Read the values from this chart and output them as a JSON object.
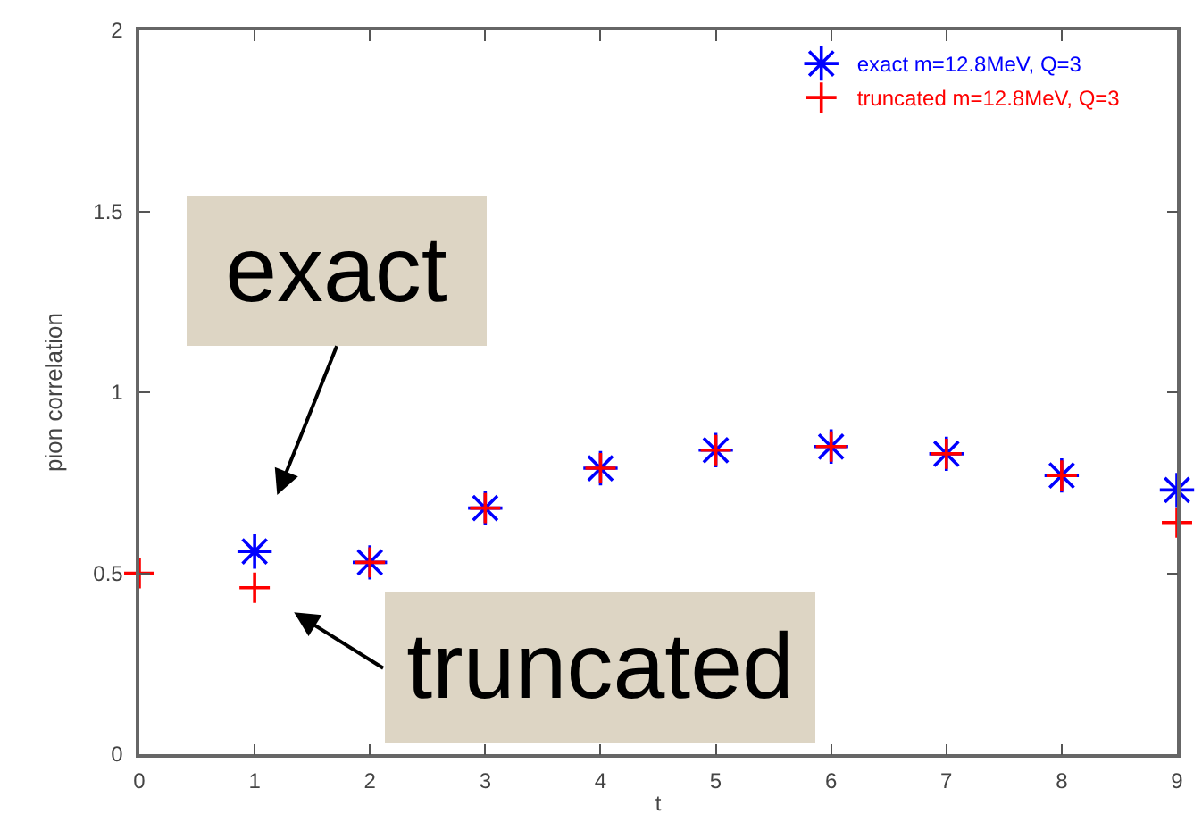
{
  "chart_data": {
    "type": "scatter",
    "xlabel": "t",
    "ylabel": "pion correlation",
    "x": [
      0,
      1,
      2,
      3,
      4,
      5,
      6,
      7,
      8,
      9
    ],
    "series": [
      {
        "name": "exact m=12.8MeV, Q=3",
        "color": "#0000ff",
        "values": [
          null,
          0.56,
          0.53,
          0.68,
          0.79,
          0.84,
          0.85,
          0.83,
          0.77,
          0.73
        ]
      },
      {
        "name": "truncated m=12.8MeV, Q=3",
        "color": "#ff0000",
        "marker": "cross",
        "values": [
          0.5,
          0.46,
          0.53,
          0.68,
          0.79,
          0.84,
          0.85,
          0.83,
          0.77,
          0.64
        ]
      }
    ],
    "xlim": [
      0,
      9
    ],
    "xticks": [
      0,
      1,
      2,
      3,
      4,
      5,
      6,
      7,
      8,
      9
    ],
    "ylim": [
      0,
      2
    ],
    "yticks": [
      0,
      0.5,
      1,
      1.5,
      2
    ],
    "grid": false,
    "legend": "top right",
    "annotations": [
      {
        "text": "exact",
        "x": 1,
        "y": 0.56
      },
      {
        "text": "truncated",
        "x": 1,
        "y": 0.46
      }
    ]
  }
}
